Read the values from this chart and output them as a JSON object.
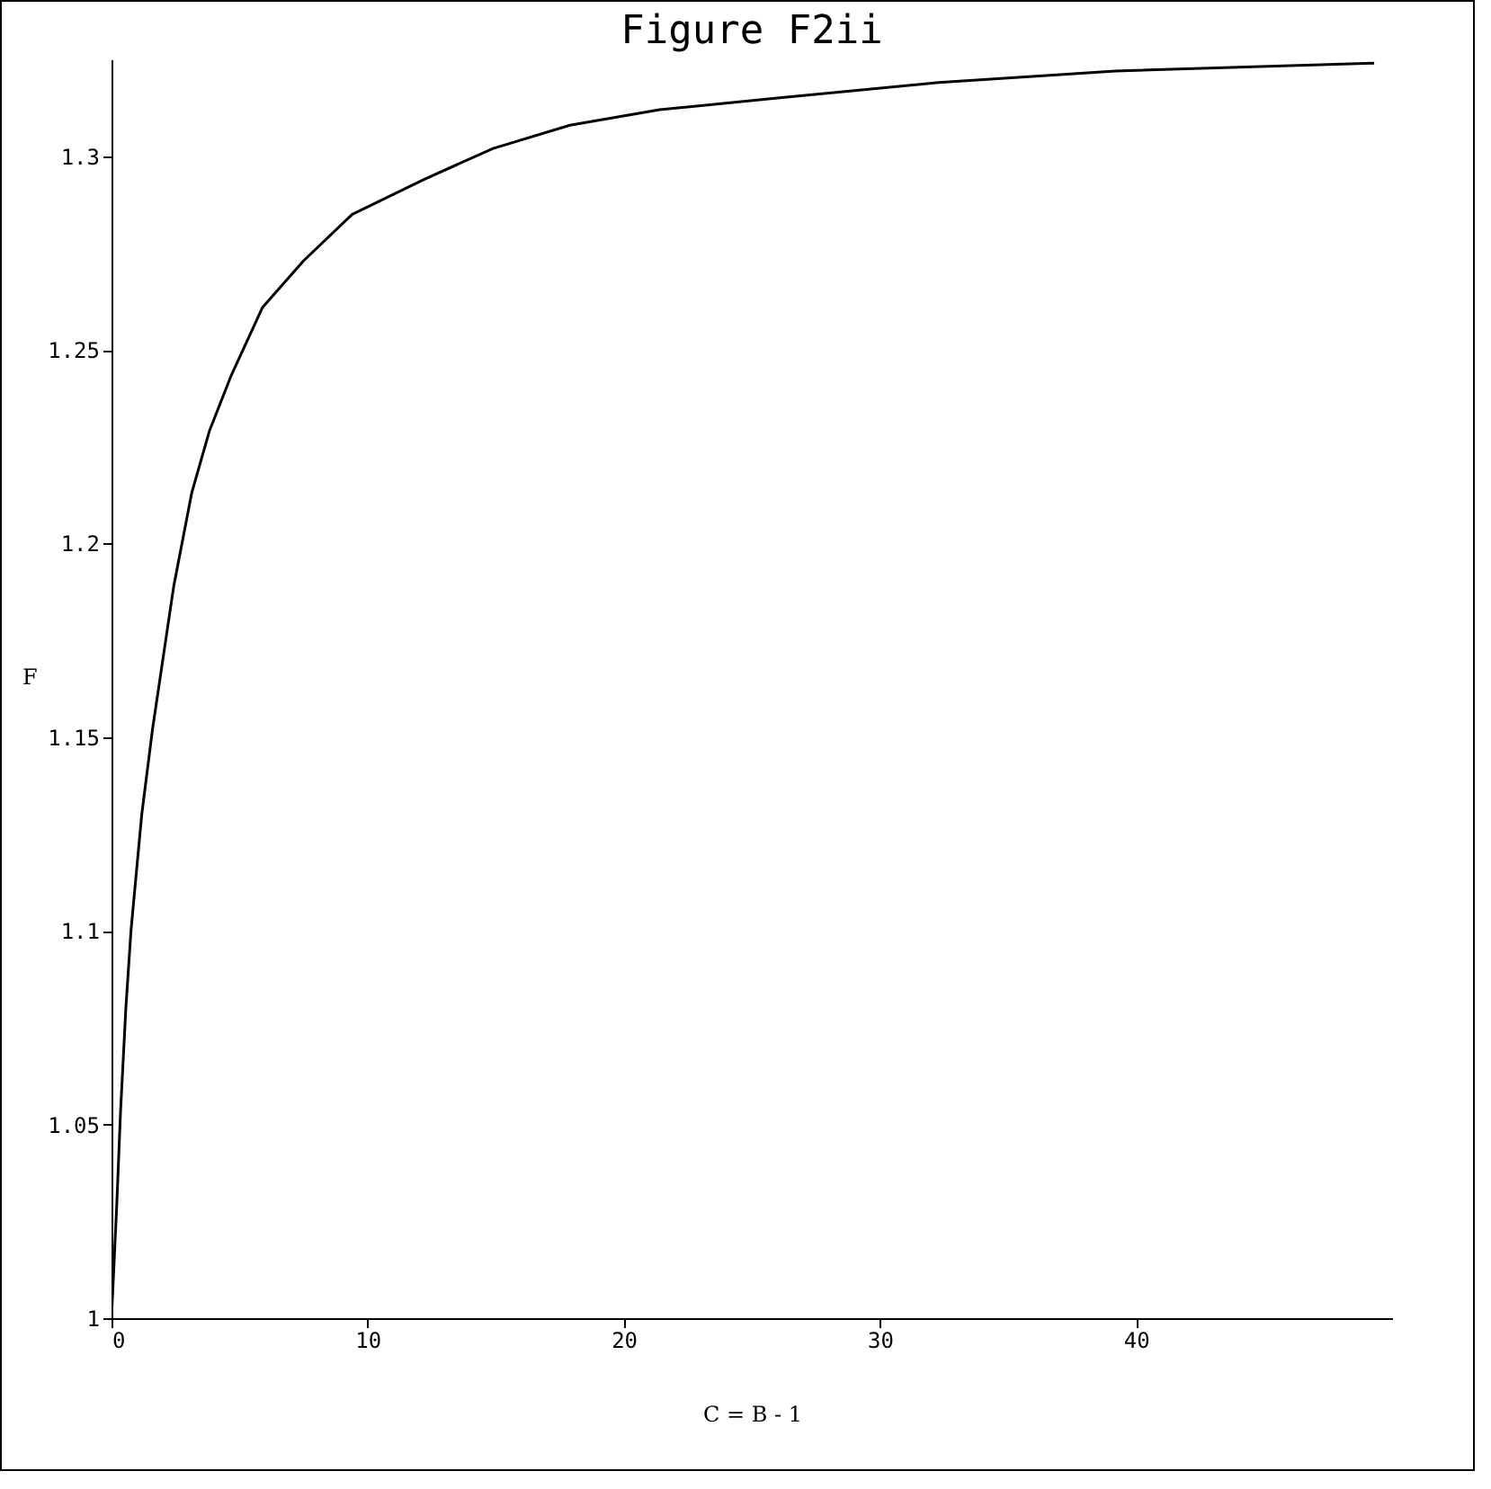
{
  "chart_data": {
    "type": "line",
    "title": "Figure F2ii",
    "xlabel": "C = B - 1",
    "ylabel": "F",
    "x": [
      0,
      0.21,
      0.35,
      0.56,
      0.76,
      1.18,
      1.6,
      2.43,
      3.13,
      3.82,
      4.65,
      5.9,
      7.5,
      9.4,
      12.2,
      14.9,
      17.9,
      21.4,
      26.0,
      32.3,
      39.2,
      49.3
    ],
    "series": [
      {
        "color": "#000000",
        "values": [
          1,
          1.03,
          1.053,
          1.08,
          1.1,
          1.13,
          1.152,
          1.189,
          1.213,
          1.229,
          1.243,
          1.261,
          1.273,
          1.285,
          1.294,
          1.302,
          1.308,
          1.312,
          1.315,
          1.319,
          1.322,
          1.324
        ]
      }
    ],
    "xlim": [
      0,
      50
    ],
    "xticks": [
      0,
      10,
      20,
      30,
      40
    ],
    "ylim": [
      1,
      1.325
    ],
    "yticks": [
      1,
      1.05,
      1.1,
      1.15,
      1.2,
      1.25,
      1.3
    ],
    "grid": false,
    "legend": false,
    "marker": "none",
    "line_style": "solid"
  }
}
